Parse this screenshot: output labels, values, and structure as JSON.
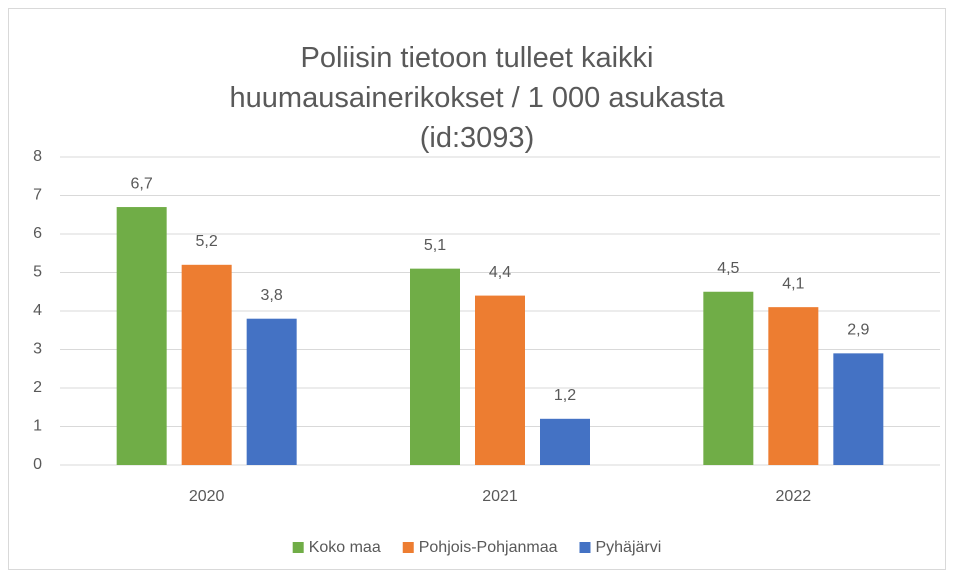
{
  "chart_data": {
    "type": "bar",
    "title": "Poliisin tietoon tulleet kaikki huumausainerikokset / 1 000 asukasta (id:3093)",
    "categories": [
      "2020",
      "2021",
      "2022"
    ],
    "series": [
      {
        "name": "Koko maa",
        "color": "#70ad47",
        "values": [
          6.7,
          5.1,
          4.5
        ],
        "value_labels": [
          "6,7",
          "5,1",
          "4,5"
        ]
      },
      {
        "name": "Pohjois-Pohjanmaa",
        "color": "#ed7d31",
        "values": [
          5.2,
          4.4,
          4.1
        ],
        "value_labels": [
          "5,2",
          "4,4",
          "4,1"
        ]
      },
      {
        "name": "Pyhäjärvi",
        "color": "#4472c4",
        "values": [
          3.8,
          1.2,
          2.9
        ],
        "value_labels": [
          "3,8",
          "1,2",
          "2,9"
        ]
      }
    ],
    "ylim": [
      0,
      8
    ],
    "yticks": [
      0,
      1,
      2,
      3,
      4,
      5,
      6,
      7,
      8
    ],
    "grid": true,
    "legend": "bottom"
  }
}
